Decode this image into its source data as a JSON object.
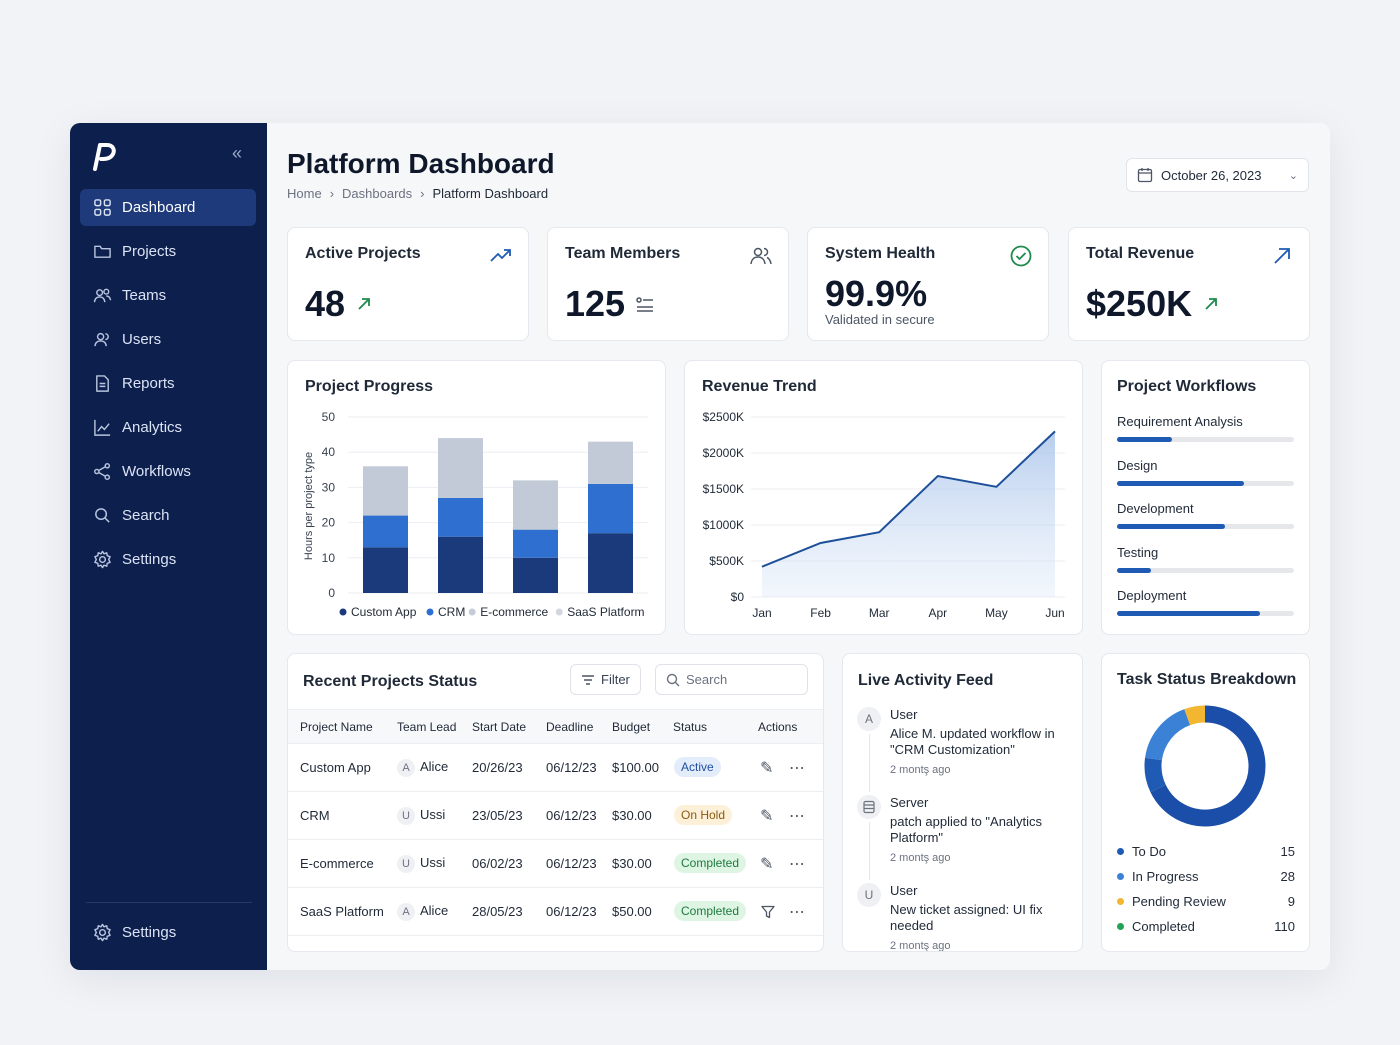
{
  "app": {
    "title": "Platform Dashboard",
    "breadcrumb": [
      "Home",
      "Dashboards",
      "Platform Dashboard"
    ],
    "date": "October 26, 2023",
    "accent": "#1f5bb5",
    "sidebar_bg": "#0d1f4d"
  },
  "sidebar": {
    "items": [
      {
        "label": "Dashboard",
        "icon": "grid-icon",
        "active": true
      },
      {
        "label": "Projects",
        "icon": "folder-icon"
      },
      {
        "label": "Teams",
        "icon": "team-icon"
      },
      {
        "label": "Users",
        "icon": "users-icon"
      },
      {
        "label": "Reports",
        "icon": "document-icon"
      },
      {
        "label": "Analytics",
        "icon": "line-chart-icon"
      },
      {
        "label": "Workflows",
        "icon": "workflow-icon"
      },
      {
        "label": "Search",
        "icon": "search-icon"
      },
      {
        "label": "Settings",
        "icon": "gear-icon"
      }
    ],
    "footer_label": "Settings"
  },
  "stats": [
    {
      "title": "Active Projects",
      "value": "48",
      "icon": "trending-up-icon"
    },
    {
      "title": "Team Members",
      "value": "125",
      "icon": "users-icon"
    },
    {
      "title": "System Health",
      "value": "99.9%",
      "sub": "Validated in secure",
      "icon": "check-circle-icon"
    },
    {
      "title": "Total Revenue",
      "value": "$250K",
      "icon": "arrow-up-right-icon"
    }
  ],
  "project_progress": {
    "title": "Project Progress",
    "ylabel": "Hours per project type",
    "legend": [
      "Custom App",
      "CRM",
      "E-commerce",
      "SaaS Platform"
    ]
  },
  "revenue_trend": {
    "title": "Revenue Trend"
  },
  "workflows": {
    "title": "Project Workflows",
    "items": [
      {
        "label": "Requirement Analysis",
        "progress": 0.31
      },
      {
        "label": "Design",
        "progress": 0.72
      },
      {
        "label": "Development",
        "progress": 0.61
      },
      {
        "label": "Testing",
        "progress": 0.19
      },
      {
        "label": "Deployment",
        "progress": 0.81
      }
    ]
  },
  "projects_table": {
    "title": "Recent Projects Status",
    "filter_label": "Filter",
    "search_placeholder": "Search",
    "columns": [
      "Project Name",
      "Team Lead",
      "Start Date",
      "Deadline",
      "Budget",
      "Status",
      "Actions"
    ],
    "rows": [
      {
        "name": "Custom App",
        "lead_initial": "A",
        "lead": "Alice",
        "start": "20/26/23",
        "deadline": "06/12/23",
        "budget": "$100.00",
        "status": "Active"
      },
      {
        "name": "CRM",
        "lead_initial": "U",
        "lead": "Ussi",
        "start": "23/05/23",
        "deadline": "06/12/23",
        "budget": "$30.00",
        "status": "On Hold"
      },
      {
        "name": "E-commerce",
        "lead_initial": "U",
        "lead": "Ussi",
        "start": "06/02/23",
        "deadline": "06/12/23",
        "budget": "$30.00",
        "status": "Completed"
      },
      {
        "name": "SaaS Platform",
        "lead_initial": "A",
        "lead": "Alice",
        "start": "28/05/23",
        "deadline": "06/12/23",
        "budget": "$50.00",
        "status": "Completed"
      }
    ]
  },
  "activity_feed": {
    "title": "Live Activity Feed",
    "items": [
      {
        "initial": "A",
        "name": "User",
        "text": "Alice M. updated workflow in \"CRM Customization\"",
        "time": "2 montş ago"
      },
      {
        "initial": "",
        "name": "Server",
        "text": "patch applied to \"Analytics Platform\"",
        "time": "2 montş ago"
      },
      {
        "initial": "U",
        "name": "User",
        "text": "New ticket assigned: UI fix needed",
        "time": "2 montş ago"
      }
    ]
  },
  "task_breakdown": {
    "title": "Task Status Breakdown",
    "items": [
      {
        "label": "To Do",
        "value": "15",
        "color": "#1f5bb5"
      },
      {
        "label": "In Progress",
        "value": "28",
        "color": "#3b82d6"
      },
      {
        "label": "Pending Review",
        "value": "9",
        "color": "#f2b630"
      },
      {
        "label": "Completed",
        "value": "110",
        "color": "#22a355"
      }
    ]
  },
  "chart_data": [
    {
      "type": "bar",
      "title": "Project Progress",
      "ylabel": "Hours per project type",
      "categories": [
        "",
        "",
        "",
        ""
      ],
      "stacked": true,
      "series": [
        {
          "name": "Custom App",
          "values": [
            13,
            16,
            10,
            17
          ]
        },
        {
          "name": "CRM",
          "values": [
            9,
            11,
            8,
            14
          ]
        },
        {
          "name": "E-commerce",
          "values": [
            0,
            0,
            0,
            0
          ]
        },
        {
          "name": "SaaS Platform",
          "values": [
            14,
            17,
            14,
            12
          ]
        }
      ],
      "ylim": [
        0,
        50
      ],
      "yticks": [
        "0",
        "10",
        "20",
        "30",
        "40",
        "50"
      ],
      "grid": true,
      "legend": "bottom"
    },
    {
      "type": "area",
      "title": "Revenue Trend",
      "x": [
        "Jan",
        "Feb",
        "Mar",
        "Apr",
        "May",
        "Jun"
      ],
      "values": [
        420,
        750,
        900,
        1680,
        1530,
        2300
      ],
      "ylim": [
        0,
        2500
      ],
      "yticks": [
        "$0",
        "$500K",
        "$1000K",
        "$1500K",
        "$2000K",
        "$2500K"
      ],
      "grid": true
    },
    {
      "type": "pie",
      "title": "Task Status Breakdown",
      "categories": [
        "To Do",
        "In Progress",
        "Pending Review",
        "Completed"
      ],
      "values": [
        15,
        28,
        9,
        110
      ],
      "donut": true
    }
  ]
}
